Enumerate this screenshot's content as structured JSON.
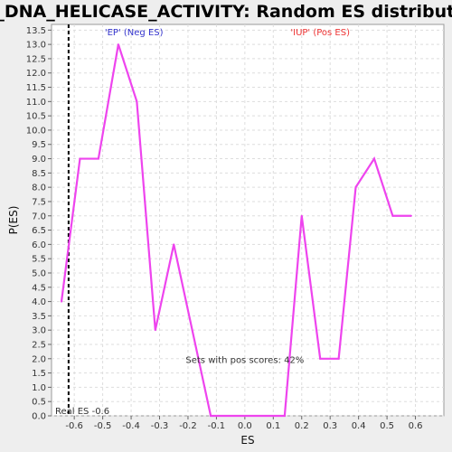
{
  "chart_data": {
    "type": "line",
    "title": "GO_DNA_HELICASE_ACTIVITY: Random ES distribution",
    "xlabel": "ES",
    "ylabel": "P(ES)",
    "xlim": [
      -0.68,
      0.7
    ],
    "ylim": [
      0,
      13.7
    ],
    "x_ticks": [
      "-0.6",
      "-0.5",
      "-0.4",
      "-0.3",
      "-0.2",
      "-0.1",
      "0.0",
      "0.1",
      "0.2",
      "0.3",
      "0.4",
      "0.5",
      "0.6"
    ],
    "y_ticks": [
      "0.0",
      "0.5",
      "1.0",
      "1.5",
      "2.0",
      "2.5",
      "3.0",
      "3.5",
      "4.0",
      "4.5",
      "5.0",
      "5.5",
      "6.0",
      "6.5",
      "7.0",
      "7.5",
      "8.0",
      "8.5",
      "9.0",
      "9.5",
      "10.0",
      "10.5",
      "11.0",
      "11.5",
      "12.0",
      "12.5",
      "13.0",
      "13.5"
    ],
    "grid": true,
    "series": [
      {
        "color": "#ee44ee",
        "x": [
          -0.645,
          -0.58,
          -0.515,
          -0.445,
          -0.38,
          -0.315,
          -0.25,
          -0.185,
          -0.12,
          -0.055,
          0.01,
          0.075,
          0.14,
          0.2,
          0.265,
          0.33,
          0.39,
          0.455,
          0.52,
          0.585
        ],
        "y": [
          4.0,
          9.0,
          9.0,
          13.0,
          11.0,
          3.0,
          6.0,
          3.0,
          0.0,
          0.0,
          0.0,
          0.0,
          0.0,
          7.0,
          2.0,
          2.0,
          8.0,
          9.0,
          7.0,
          7.0
        ]
      }
    ],
    "real_es": -0.62,
    "real_es_label": "Real ES -0.6",
    "neg_label": "'EP' (Neg ES)",
    "pos_label": "'IUP' (Pos ES)",
    "pos_scores_text": "Sets with pos scores: 42%",
    "neg_color": "#3333cc",
    "pos_color": "#ee3333",
    "line_color": "#ee44ee"
  }
}
